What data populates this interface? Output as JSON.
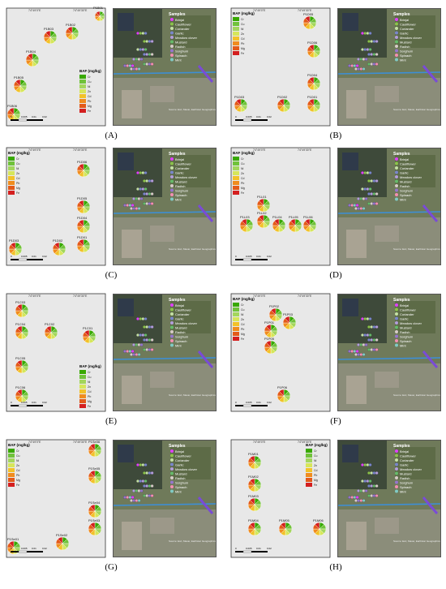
{
  "figure": {
    "panel_labels": [
      "(A)",
      "(B)",
      "(C)",
      "(D)",
      "(E)",
      "(F)",
      "(G)",
      "(H)"
    ]
  },
  "legend": {
    "baf_title": "BAF (mg/kg)",
    "baf_items": [
      "Cr",
      "Cu",
      "Ni",
      "Zn",
      "Cd",
      "Pb",
      "Mg",
      "Fe"
    ],
    "baf_colors": [
      "#38a800",
      "#70c23a",
      "#a3d65c",
      "#d6e65a",
      "#f2c229",
      "#f08c1e",
      "#e35a19",
      "#d41f1f"
    ],
    "samples_title": "Samples",
    "samples_items": [
      "Brinjal",
      "Cauliflower",
      "Coriander",
      "Garlic",
      "Meadow clover",
      "Mustard",
      "Radish",
      "Sorghum",
      "Spinach",
      "Mint"
    ],
    "samples_colors": [
      "#e040fb",
      "#8bc34a",
      "#c5e1a5",
      "#7986cb",
      "#b39ddb",
      "#66bb6a",
      "#d7ccc8",
      "#9575cd",
      "#f48fb1",
      "#80cbc4"
    ],
    "scale_labels": [
      "0",
      "0.005",
      "0.01",
      "0.02"
    ],
    "scale_unit": "Km",
    "coord_x": [
      "74°49'0\"E",
      "74°49'30\"E"
    ],
    "coord_y": [
      "31°19'30\"N",
      "31°19'0\"N"
    ]
  },
  "panels": {
    "A": {
      "sites": [
        "P1B01",
        "P1B02",
        "P1B03",
        "P1B04",
        "P1B05",
        "P1B06"
      ]
    },
    "B": {
      "sites": [
        "P1D05",
        "P1D06",
        "P1D04",
        "P1D03",
        "P1D02",
        "P1D01"
      ]
    },
    "C": {
      "sites": [
        "P1D06",
        "P1D05",
        "P1D04",
        "P1D03",
        "P1D02",
        "P1D01"
      ]
    },
    "D": {
      "sites": [
        "P1L01",
        "P1L02",
        "P1L03",
        "P1L04",
        "P1L05",
        "P1L06"
      ]
    },
    "E": {
      "sites": [
        "P1C03",
        "P1C04",
        "P1C02",
        "P1C01",
        "P1C05",
        "P1C06"
      ]
    },
    "F": {
      "sites": [
        "P1P02",
        "P1P03",
        "P1P01",
        "P1P05",
        "P1P06"
      ]
    },
    "G": {
      "sites": [
        "P1Se06",
        "P1Se05",
        "P1Se04",
        "P1Se03",
        "P1Se02",
        "P1Se01"
      ]
    },
    "H": {
      "sites": [
        "P1M01",
        "P1M02",
        "P1M03",
        "P1M04",
        "P1M05",
        "P1M06"
      ]
    }
  },
  "satellite_caption": "Source: Esri, Maxar, Earthstar Geographics, and the GIS User Community"
}
